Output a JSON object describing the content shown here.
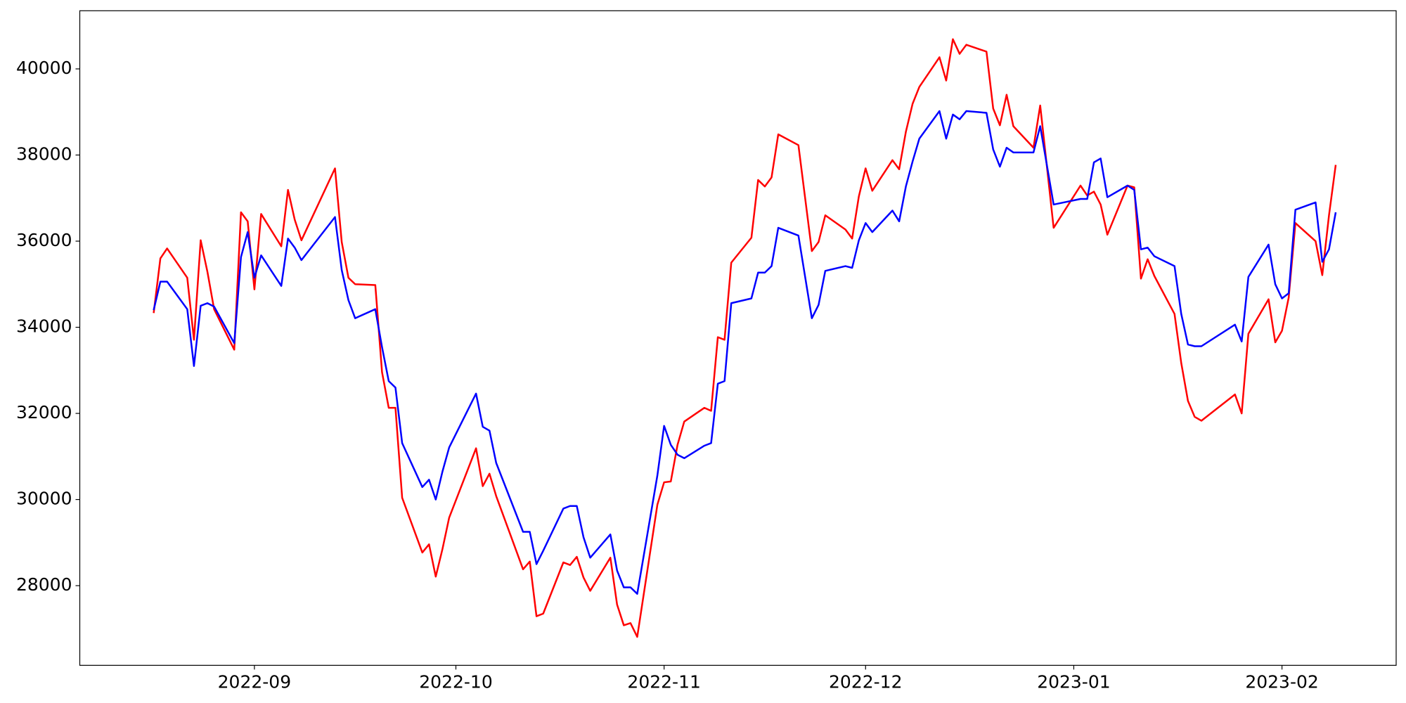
{
  "chart_data": {
    "type": "line",
    "x": [
      "2022-08-17",
      "2022-08-18",
      "2022-08-19",
      "2022-08-22",
      "2022-08-23",
      "2022-08-24",
      "2022-08-25",
      "2022-08-26",
      "2022-08-29",
      "2022-08-30",
      "2022-08-31",
      "2022-09-01",
      "2022-09-02",
      "2022-09-05",
      "2022-09-06",
      "2022-09-07",
      "2022-09-08",
      "2022-09-13",
      "2022-09-14",
      "2022-09-15",
      "2022-09-16",
      "2022-09-19",
      "2022-09-20",
      "2022-09-21",
      "2022-09-22",
      "2022-09-23",
      "2022-09-26",
      "2022-09-27",
      "2022-09-28",
      "2022-09-29",
      "2022-09-30",
      "2022-10-04",
      "2022-10-05",
      "2022-10-06",
      "2022-10-07",
      "2022-10-11",
      "2022-10-12",
      "2022-10-13",
      "2022-10-14",
      "2022-10-17",
      "2022-10-18",
      "2022-10-19",
      "2022-10-20",
      "2022-10-21",
      "2022-10-24",
      "2022-10-25",
      "2022-10-26",
      "2022-10-27",
      "2022-10-28",
      "2022-10-31",
      "2022-11-01",
      "2022-11-02",
      "2022-11-03",
      "2022-11-04",
      "2022-11-07",
      "2022-11-08",
      "2022-11-09",
      "2022-11-10",
      "2022-11-11",
      "2022-11-14",
      "2022-11-15",
      "2022-11-16",
      "2022-11-17",
      "2022-11-18",
      "2022-11-21",
      "2022-11-23",
      "2022-11-24",
      "2022-11-25",
      "2022-11-28",
      "2022-11-29",
      "2022-11-30",
      "2022-12-01",
      "2022-12-02",
      "2022-12-05",
      "2022-12-06",
      "2022-12-07",
      "2022-12-08",
      "2022-12-09",
      "2022-12-12",
      "2022-12-13",
      "2022-12-14",
      "2022-12-15",
      "2022-12-16",
      "2022-12-19",
      "2022-12-20",
      "2022-12-21",
      "2022-12-22",
      "2022-12-23",
      "2022-12-26",
      "2022-12-27",
      "2022-12-29",
      "2023-01-02",
      "2023-01-03",
      "2023-01-04",
      "2023-01-05",
      "2023-01-06",
      "2023-01-09",
      "2023-01-10",
      "2023-01-11",
      "2023-01-12",
      "2023-01-13",
      "2023-01-16",
      "2023-01-17",
      "2023-01-18",
      "2023-01-19",
      "2023-01-20",
      "2023-01-25",
      "2023-01-26",
      "2023-01-27",
      "2023-01-30",
      "2023-01-31",
      "2023-02-01",
      "2023-02-02",
      "2023-02-03",
      "2023-02-06",
      "2023-02-07",
      "2023-02-08",
      "2023-02-09"
    ],
    "series": [
      {
        "color": "#ff0000",
        "values": [
          34330,
          35600,
          35830,
          35150,
          33710,
          36020,
          35290,
          34420,
          33480,
          36670,
          36460,
          34880,
          36630,
          35880,
          37190,
          36500,
          36020,
          37690,
          35980,
          35150,
          35000,
          34980,
          32960,
          32130,
          32130,
          30040,
          28770,
          28960,
          28210,
          28850,
          29580,
          31190,
          30310,
          30600,
          30080,
          28380,
          28560,
          27290,
          27350,
          28540,
          28480,
          28670,
          28190,
          27880,
          28650,
          27560,
          27080,
          27130,
          26810,
          29880,
          30400,
          30420,
          31270,
          31810,
          32130,
          32060,
          33770,
          33710,
          35500,
          36080,
          37420,
          37270,
          37480,
          38480,
          38230,
          35770,
          35980,
          36600,
          36270,
          36060,
          37040,
          37690,
          37170,
          37880,
          37670,
          38540,
          39190,
          39580,
          40270,
          39730,
          40690,
          40350,
          40560,
          40400,
          39080,
          38690,
          39400,
          38670,
          38170,
          39150,
          36310,
          37290,
          37060,
          37150,
          36850,
          36150,
          37290,
          37250,
          35130,
          35580,
          35190,
          34310,
          33170,
          32290,
          31920,
          31830,
          32440,
          32000,
          33850,
          34650,
          33650,
          33920,
          34690,
          36420,
          36000,
          35210,
          36600,
          37770
        ]
      },
      {
        "color": "#0000ff",
        "values": [
          34400,
          35060,
          35060,
          34420,
          33100,
          34500,
          34560,
          34480,
          33630,
          35630,
          36210,
          35150,
          35670,
          34960,
          36060,
          35850,
          35560,
          36560,
          35330,
          34630,
          34210,
          34420,
          33540,
          32750,
          32600,
          31310,
          30290,
          30460,
          30000,
          30650,
          31210,
          32460,
          31690,
          31600,
          30850,
          29250,
          29250,
          28500,
          28810,
          29790,
          29850,
          29850,
          29125,
          28650,
          29190,
          28350,
          27960,
          27960,
          27810,
          30560,
          31710,
          31270,
          31040,
          30960,
          31250,
          31310,
          32690,
          32750,
          34560,
          34670,
          35270,
          35270,
          35420,
          36310,
          36130,
          34210,
          34520,
          35310,
          35420,
          35380,
          36020,
          36420,
          36210,
          36710,
          36460,
          37270,
          37850,
          38380,
          39020,
          38380,
          38940,
          38830,
          39020,
          38980,
          38130,
          37730,
          38170,
          38060,
          38060,
          38670,
          36850,
          36980,
          36980,
          37830,
          37920,
          37020,
          37290,
          37190,
          35810,
          35850,
          35650,
          35420,
          34310,
          33600,
          33560,
          33560,
          34060,
          33670,
          35170,
          35920,
          35000,
          34670,
          34790,
          36730,
          36900,
          35520,
          35810,
          36670
        ]
      }
    ],
    "xlim": [
      "2022-08-06",
      "2023-02-18"
    ],
    "xticks": [
      {
        "value": "2022-09-01",
        "label": "2022-09"
      },
      {
        "value": "2022-10-01",
        "label": "2022-10"
      },
      {
        "value": "2022-11-01",
        "label": "2022-11"
      },
      {
        "value": "2022-12-01",
        "label": "2022-12"
      },
      {
        "value": "2023-01-01",
        "label": "2023-01"
      },
      {
        "value": "2023-02-01",
        "label": "2023-02"
      }
    ],
    "ylim": [
      26150,
      41350
    ],
    "yticks": [
      28000,
      30000,
      32000,
      34000,
      36000,
      38000,
      40000
    ],
    "grid": false
  }
}
